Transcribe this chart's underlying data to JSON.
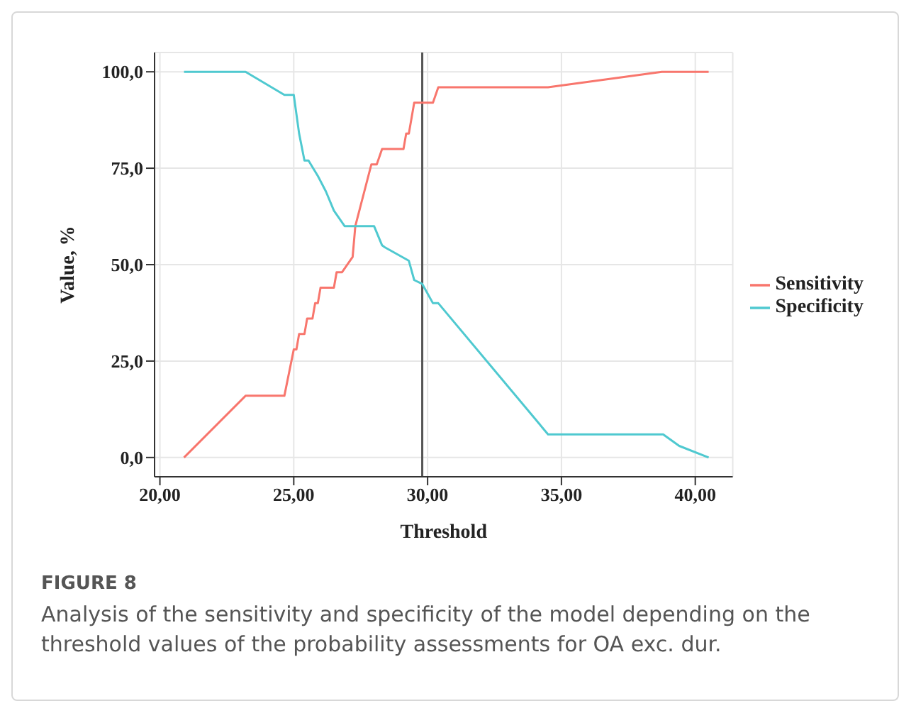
{
  "chart_data": {
    "type": "line",
    "xlabel": "Threshold",
    "ylabel": "Value, %",
    "xlim": [
      19.8,
      41.4
    ],
    "ylim": [
      -5,
      105
    ],
    "xticks": [
      {
        "value": 20,
        "label": "20,00"
      },
      {
        "value": 25,
        "label": "25,00"
      },
      {
        "value": 30,
        "label": "30,00"
      },
      {
        "value": 35,
        "label": "35,00"
      },
      {
        "value": 40,
        "label": "40,00"
      }
    ],
    "yticks": [
      {
        "value": 0,
        "label": "0,0"
      },
      {
        "value": 25,
        "label": "25,0"
      },
      {
        "value": 50,
        "label": "50,0"
      },
      {
        "value": 75,
        "label": "75,0"
      },
      {
        "value": 100,
        "label": "100,0"
      }
    ],
    "series": [
      {
        "name": "Sensitivity",
        "color": "#f8766d",
        "x": [
          20.9,
          23.2,
          24.65,
          25.0,
          25.1,
          25.2,
          25.4,
          25.5,
          25.7,
          25.8,
          25.9,
          26.0,
          26.5,
          26.6,
          26.8,
          27.2,
          27.3,
          27.9,
          28.1,
          28.3,
          29.1,
          29.2,
          29.3,
          29.5,
          29.7,
          30.2,
          30.4,
          34.5,
          38.75,
          40.5
        ],
        "values": [
          0,
          16,
          16,
          28,
          28,
          32,
          32,
          36,
          36,
          40,
          40,
          44,
          44,
          48,
          48,
          52,
          60,
          76,
          76,
          80,
          80,
          84,
          84,
          92,
          92,
          92,
          96,
          96,
          100,
          100
        ]
      },
      {
        "name": "Specificity",
        "color": "#4fc9d0",
        "x": [
          20.9,
          23.2,
          24.65,
          25.0,
          25.2,
          25.4,
          25.55,
          25.9,
          26.2,
          26.5,
          26.9,
          28.0,
          28.3,
          28.4,
          29.3,
          29.5,
          29.8,
          30.2,
          30.4,
          34.5,
          38.8,
          39.4,
          40.5
        ],
        "values": [
          100,
          100,
          94,
          94,
          84,
          77,
          77,
          73,
          69,
          64,
          60,
          60,
          55,
          54.5,
          51,
          46,
          45,
          40,
          40,
          6,
          6,
          3,
          0
        ]
      }
    ],
    "ref_lines": [
      {
        "axis": "x",
        "value": 29.8,
        "color": "#555555"
      }
    ],
    "grid": true,
    "legend": "right",
    "marker": "none",
    "line_style": "solid",
    "annotations": [
      "FIGURE 8",
      "Analysis of the sensitivity and specificity of the model depending on the threshold values of the probability assessments for OA exc. dur."
    ]
  }
}
